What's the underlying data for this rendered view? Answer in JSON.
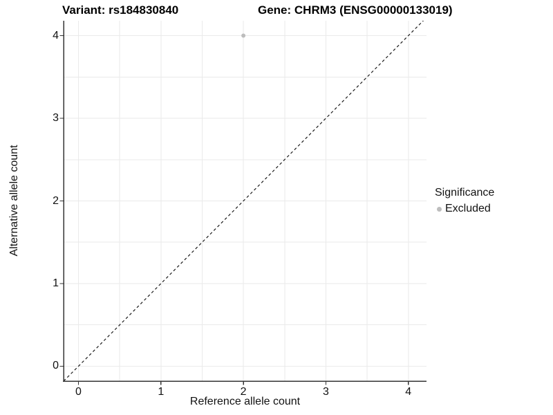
{
  "header": {
    "variant_title": "Variant: rs184830840",
    "gene_title": "Gene: CHRM3 (ENSG00000133019)"
  },
  "axes": {
    "x_label": "Reference allele count",
    "y_label": "Alternative allele count"
  },
  "legend": {
    "title": "Significance",
    "items": [
      {
        "label": "Excluded",
        "color": "#bdbdbd",
        "marker": "circle"
      }
    ]
  },
  "chart_data": {
    "type": "scatter",
    "title": "Variant: rs184830840 — Gene: CHRM3 (ENSG00000133019)",
    "xlabel": "Reference allele count",
    "ylabel": "Alternative allele count",
    "xlim": [
      -0.18,
      4.22
    ],
    "ylim": [
      -0.18,
      4.18
    ],
    "x_ticks": [
      0,
      1,
      2,
      3,
      4
    ],
    "y_ticks": [
      0,
      1,
      2,
      3,
      4
    ],
    "minor_grid_step": 0.5,
    "grid": true,
    "legend_position": "right",
    "series": [
      {
        "name": "Excluded",
        "color": "#bdbdbd",
        "marker_radius": 3,
        "points": [
          {
            "x": 2,
            "y": 4
          }
        ]
      }
    ],
    "reference_line": {
      "kind": "identity",
      "slope": 1,
      "intercept": 0,
      "style": "dashed",
      "color": "#1a1a1a"
    }
  },
  "colors": {
    "background": "#ffffff",
    "grid": "#eaeaea",
    "axis": "#333333",
    "text": "#111111",
    "excluded_point": "#bdbdbd"
  }
}
